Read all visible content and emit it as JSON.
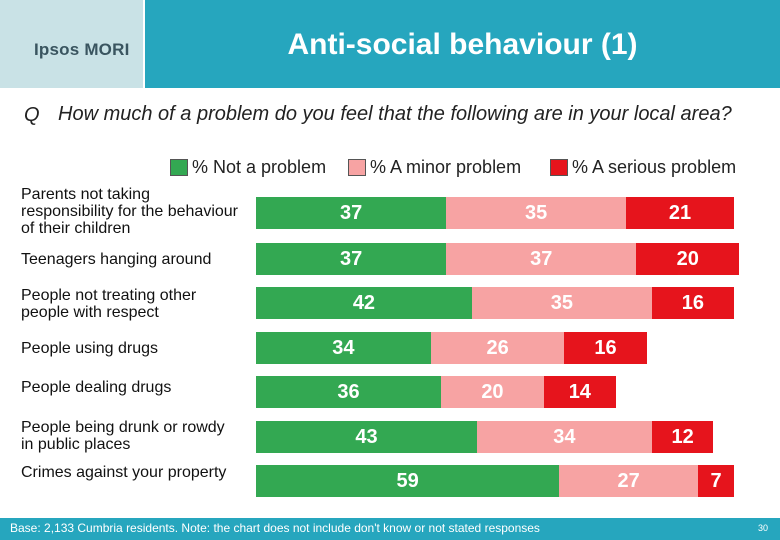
{
  "header": {
    "logo": "Ipsos MORI",
    "title": "Anti-social behaviour (1)"
  },
  "question": {
    "marker": "Q",
    "text": "How much of a problem do you feel that the following are in your local area?"
  },
  "legend": [
    {
      "label": "% Not a problem",
      "color": "#33a852"
    },
    {
      "label": "% A minor problem",
      "color": "#f7a3a3"
    },
    {
      "label": "% A serious problem",
      "color": "#e6141c"
    }
  ],
  "chart_data": {
    "type": "bar",
    "orientation": "horizontal",
    "stacked": true,
    "categories": [
      "Parents not taking responsibility for the behaviour of their children",
      "Teenagers hanging around",
      "People not treating other people with respect",
      "People using drugs",
      "People dealing drugs",
      "People being drunk or rowdy in public places",
      "Crimes against your property"
    ],
    "series": [
      {
        "name": "% Not a problem",
        "color": "#33a852",
        "values": [
          37,
          37,
          42,
          34,
          36,
          43,
          59
        ]
      },
      {
        "name": "% A minor problem",
        "color": "#f7a3a3",
        "values": [
          35,
          37,
          35,
          26,
          20,
          34,
          27
        ]
      },
      {
        "name": "% A serious problem",
        "color": "#e6141c",
        "values": [
          21,
          20,
          16,
          16,
          14,
          12,
          7
        ]
      }
    ]
  },
  "footer": {
    "base": "Base: 2,133 Cumbria residents. Note: the chart does not include don't know or not stated responses",
    "page": "30"
  }
}
